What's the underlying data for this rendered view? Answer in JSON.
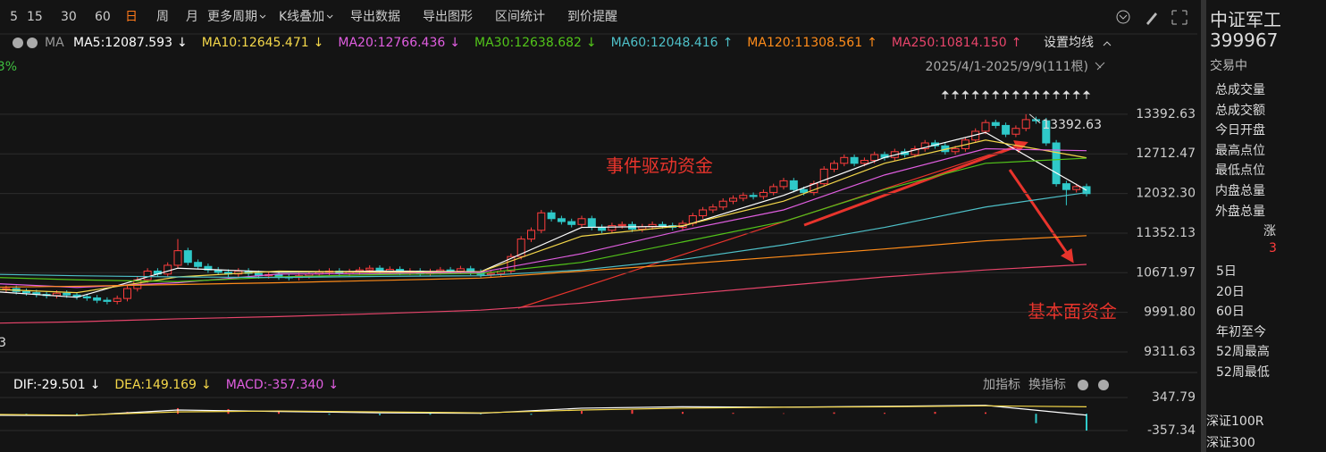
{
  "toolbar": {
    "items": [
      "5",
      "15",
      "30",
      "60",
      "日",
      "周",
      "月",
      "更多周期",
      "K线叠加",
      "导出数据",
      "导出图形",
      "区间统计",
      "到价提醒"
    ]
  },
  "chart_data": {
    "type": "candlestick",
    "legend_prefix": "MA",
    "range_label": "2025/4/1-2025/9/9(111根)",
    "settings_label": "设置均线",
    "edge_labels": [
      "3%",
      "3"
    ],
    "up_color": "#ff3d3d",
    "down_color": "#2fc9c9",
    "ylim": [
      8990,
      14050
    ],
    "yticks": [
      13392.63,
      12712.47,
      {
        "value": 12032.3,
        "label": "12032.30"
      },
      11352.13,
      10671.97,
      {
        "value": 9991.8,
        "label": "9991.80"
      },
      9311.63
    ],
    "grid": true,
    "open": [
      10480,
      10450,
      10420,
      10380,
      10400,
      10350,
      10330,
      10300,
      10280,
      10320,
      10290,
      10260,
      10240,
      10200,
      10180,
      10230,
      10400,
      10550,
      10700,
      10650,
      10800,
      11050,
      10850,
      10780,
      10720,
      10680,
      10650,
      10700,
      10660,
      10620,
      10640,
      10600,
      10590,
      10620,
      10650,
      10680,
      10700,
      10660,
      10690,
      10720,
      10750,
      10700,
      10730,
      10680,
      10700,
      10660,
      10690,
      10720,
      10700,
      10740,
      10680,
      10640,
      10660,
      10700,
      10950,
      11250,
      11400,
      11700,
      11600,
      11550,
      11500,
      11600,
      11450,
      11400,
      11480,
      11500,
      11420,
      11460,
      11500,
      11480,
      11450,
      11520,
      11650,
      11750,
      11800,
      11900,
      11950,
      12000,
      11980,
      12050,
      12150,
      12250,
      12100,
      12050,
      12200,
      12450,
      12550,
      12650,
      12550,
      12600,
      12700,
      12650,
      12750,
      12700,
      12800,
      12900,
      12850,
      12750,
      12800,
      12950,
      13100,
      13250,
      13200,
      13050,
      13150,
      13300,
      13280,
      12900,
      12200,
      12100,
      12150
    ],
    "high": [
      10530,
      10500,
      10470,
      10450,
      10450,
      10400,
      10380,
      10350,
      10370,
      10370,
      10340,
      10310,
      10290,
      10250,
      10280,
      10450,
      10600,
      10750,
      10750,
      10850,
      11250,
      11100,
      10900,
      10830,
      10770,
      10730,
      10750,
      10750,
      10710,
      10690,
      10690,
      10650,
      10670,
      10700,
      10730,
      10750,
      10750,
      10740,
      10770,
      10800,
      10800,
      10780,
      10780,
      10750,
      10750,
      10740,
      10770,
      10770,
      10790,
      10790,
      10730,
      10710,
      10750,
      11000,
      11300,
      11450,
      11750,
      11750,
      11650,
      11600,
      11650,
      11650,
      11500,
      11530,
      11550,
      11550,
      11510,
      11550,
      11550,
      11530,
      11570,
      11700,
      11800,
      11850,
      11950,
      12000,
      12050,
      12050,
      12100,
      12200,
      12300,
      12300,
      12150,
      12250,
      12500,
      12600,
      12700,
      12700,
      12650,
      12750,
      12750,
      12800,
      12800,
      12850,
      12950,
      12950,
      12900,
      12850,
      13000,
      13150,
      13300,
      13300,
      13250,
      13200,
      13392.63,
      13350,
      13330,
      12950,
      12250,
      12200,
      12200
    ],
    "low": [
      10400,
      10370,
      10330,
      10330,
      10300,
      10280,
      10250,
      10230,
      10230,
      10240,
      10210,
      10190,
      10150,
      10130,
      10130,
      10180,
      10350,
      10500,
      10600,
      10600,
      10750,
      10800,
      10730,
      10670,
      10630,
      10600,
      10600,
      10610,
      10570,
      10570,
      10550,
      10540,
      10540,
      10570,
      10600,
      10630,
      10610,
      10610,
      10640,
      10670,
      10650,
      10650,
      10630,
      10630,
      10610,
      10610,
      10640,
      10650,
      10650,
      10630,
      10590,
      10590,
      10610,
      10650,
      10900,
      11200,
      11350,
      11550,
      11500,
      11450,
      11450,
      11400,
      11350,
      11350,
      11430,
      11370,
      11370,
      11410,
      11430,
      11400,
      11400,
      11470,
      11600,
      11700,
      11750,
      11850,
      11900,
      11930,
      11930,
      12000,
      12100,
      12050,
      12000,
      12000,
      12150,
      12400,
      12500,
      12500,
      12500,
      12550,
      12600,
      12600,
      12650,
      12650,
      12750,
      12800,
      12700,
      12700,
      12750,
      12900,
      13050,
      13150,
      13000,
      13000,
      13100,
      13230,
      12850,
      12150,
      11830,
      12050,
      11980
    ],
    "close": [
      10450,
      10420,
      10380,
      10400,
      10350,
      10330,
      10300,
      10280,
      10320,
      10290,
      10260,
      10240,
      10200,
      10180,
      10230,
      10400,
      10550,
      10700,
      10650,
      10800,
      11050,
      10850,
      10780,
      10720,
      10680,
      10650,
      10700,
      10660,
      10620,
      10640,
      10600,
      10590,
      10620,
      10650,
      10680,
      10700,
      10660,
      10690,
      10720,
      10750,
      10700,
      10730,
      10680,
      10700,
      10660,
      10690,
      10720,
      10700,
      10740,
      10680,
      10640,
      10660,
      10700,
      10950,
      11250,
      11400,
      11700,
      11600,
      11550,
      11500,
      11600,
      11450,
      11400,
      11480,
      11500,
      11420,
      11460,
      11500,
      11480,
      11450,
      11520,
      11650,
      11750,
      11800,
      11900,
      11950,
      12000,
      11980,
      12050,
      12150,
      12250,
      12100,
      12050,
      12200,
      12450,
      12550,
      12650,
      12550,
      12600,
      12700,
      12650,
      12750,
      12700,
      12800,
      12900,
      12850,
      12750,
      12800,
      12950,
      13100,
      13250,
      13200,
      13050,
      13150,
      13300,
      13280,
      12900,
      12200,
      12100,
      12150,
      12030
    ],
    "series": [
      {
        "name": "MA5:12087.593",
        "trend": "↓",
        "color": "#ffffff",
        "x": [
          0,
          10,
          20,
          30,
          40,
          50,
          60,
          70,
          80,
          90,
          100,
          110
        ],
        "values": [
          10370,
          10250,
          10750,
          10680,
          10700,
          10690,
          11450,
          11470,
          12000,
          12650,
          13080,
          12087.593
        ]
      },
      {
        "name": "MA10:12645.471",
        "trend": "↓",
        "color": "#f5d84a",
        "x": [
          0,
          10,
          20,
          30,
          40,
          50,
          60,
          70,
          80,
          90,
          100,
          110
        ],
        "values": [
          10400,
          10330,
          10600,
          10700,
          10680,
          10690,
          11300,
          11480,
          11900,
          12550,
          12950,
          12645.471
        ]
      },
      {
        "name": "MA20:12766.436",
        "trend": "↓",
        "color": "#e05ee0",
        "x": [
          0,
          10,
          20,
          30,
          40,
          50,
          60,
          70,
          80,
          90,
          100,
          110
        ],
        "values": [
          10500,
          10420,
          10500,
          10650,
          10660,
          10680,
          11000,
          11400,
          11750,
          12350,
          12800,
          12766.436
        ]
      },
      {
        "name": "MA30:12638.682",
        "trend": "↓",
        "color": "#52c41a",
        "x": [
          0,
          10,
          20,
          30,
          40,
          50,
          60,
          70,
          80,
          90,
          100,
          110
        ],
        "values": [
          10600,
          10550,
          10520,
          10600,
          10640,
          10660,
          10850,
          11200,
          11550,
          12100,
          12550,
          12638.682
        ]
      },
      {
        "name": "MA60:12048.416",
        "trend": "↑",
        "color": "#4ec0c8",
        "x": [
          0,
          10,
          20,
          30,
          40,
          50,
          60,
          70,
          80,
          90,
          100,
          110
        ],
        "values": [
          10650,
          10620,
          10600,
          10590,
          10610,
          10620,
          10720,
          10900,
          11150,
          11450,
          11800,
          12048.416
        ]
      },
      {
        "name": "MA120:11308.561",
        "trend": "↑",
        "color": "#ff8c1a",
        "x": [
          0,
          10,
          20,
          30,
          40,
          50,
          60,
          70,
          80,
          90,
          100,
          110
        ],
        "values": [
          10420,
          10440,
          10470,
          10500,
          10540,
          10580,
          10700,
          10820,
          10950,
          11080,
          11220,
          11308.561
        ]
      },
      {
        "name": "MA250:10814.150",
        "trend": "↑",
        "color": "#e8456b",
        "x": [
          0,
          10,
          20,
          30,
          40,
          50,
          60,
          70,
          80,
          90,
          100,
          110
        ],
        "values": [
          9800,
          9830,
          9880,
          9920,
          9970,
          10030,
          10150,
          10300,
          10450,
          10600,
          10720,
          10814.15
        ]
      }
    ],
    "annotations": [
      {
        "text": "事件驱动资金"
      },
      {
        "text": "基本面资金"
      }
    ],
    "max_point": 104,
    "macd": {
      "type": "macd",
      "ylim": [
        -700,
        480
      ],
      "yticks": [
        347.79,
        -357.34
      ],
      "buttons": [
        "加指标",
        "换指标"
      ],
      "series": [
        {
          "name": "DIF:-29.501",
          "trend": "↓",
          "color": "#ffffff",
          "x": [
            0,
            10,
            20,
            30,
            40,
            50,
            60,
            70,
            80,
            90,
            100,
            110
          ],
          "values": [
            -30,
            -40,
            80,
            50,
            20,
            10,
            120,
            150,
            140,
            160,
            180,
            -29.501
          ]
        },
        {
          "name": "DEA:149.169",
          "trend": "↓",
          "color": "#f5d84a",
          "x": [
            0,
            10,
            20,
            30,
            40,
            50,
            60,
            70,
            80,
            90,
            100,
            110
          ],
          "values": [
            -10,
            -30,
            40,
            60,
            40,
            20,
            80,
            120,
            140,
            150,
            170,
            149.169
          ]
        }
      ],
      "hist": {
        "name": "MACD:-357.340",
        "trend": "↓",
        "color": "#e05ee0",
        "up_color": "#ff3d3d",
        "down_color": "#2fc9c9",
        "x": [
          0,
          5,
          10,
          15,
          20,
          25,
          30,
          35,
          40,
          45,
          50,
          55,
          60,
          65,
          70,
          75,
          80,
          85,
          90,
          95,
          100,
          105,
          110
        ],
        "values": [
          -40,
          -20,
          -30,
          40,
          120,
          100,
          40,
          -20,
          -30,
          -20,
          -10,
          -20,
          60,
          80,
          40,
          20,
          10,
          30,
          20,
          40,
          30,
          -200,
          -357.34
        ]
      }
    }
  },
  "sidebar": {
    "name": "中证军工",
    "code": "399967",
    "status": "交易中",
    "fields": [
      "总成交量",
      "总成交额",
      "今日开盘",
      "最高点位",
      "最低点位",
      "内盘总量",
      "外盘总量"
    ],
    "change_header": "涨",
    "change_value": 3,
    "periods": [
      "5日",
      "20日",
      "60日",
      "年初至今",
      "52周最高",
      "52周最低"
    ],
    "related": [
      "深证100R",
      "深证300"
    ]
  }
}
